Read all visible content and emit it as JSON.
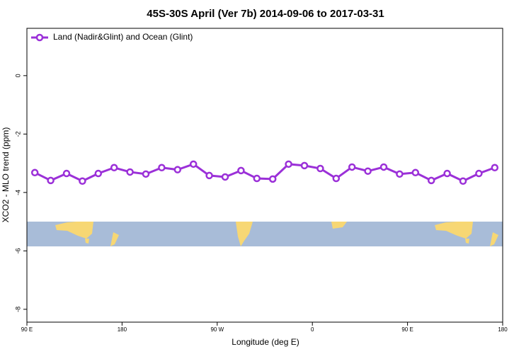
{
  "chart_data": {
    "type": "line",
    "title": "45S-30S April (Ver 7b)   2014-09-06 to 2017-03-31",
    "xlabel": "Longitude (deg E)",
    "ylabel": "XCO2 - MLO trend (ppm)",
    "x": [
      97.5,
      112.5,
      127.5,
      142.5,
      157.5,
      172.5,
      187.5,
      202.5,
      217.5,
      232.5,
      247.5,
      262.5,
      277.5,
      292.5,
      307.5,
      322.5,
      337.5,
      352.5,
      367.5,
      382.5,
      397.5,
      412.5,
      427.5,
      442.5,
      457.5,
      472.5,
      487.5,
      502.5,
      517.5,
      532.5
    ],
    "series": [
      {
        "name": "Land (Nadir&Glint) and Ocean (Glint)",
        "color": "#9b30d8",
        "values": [
          -3.32,
          -3.59,
          -3.35,
          -3.61,
          -3.35,
          -3.15,
          -3.3,
          -3.37,
          -3.15,
          -3.22,
          -3.03,
          -3.42,
          -3.47,
          -3.25,
          -3.52,
          -3.54,
          -3.03,
          -3.08,
          -3.18,
          -3.52,
          -3.13,
          -3.27,
          -3.13,
          -3.37,
          -3.32,
          -3.59,
          -3.35,
          -3.61,
          -3.35,
          -3.15
        ]
      }
    ],
    "xlim": [
      90,
      540
    ],
    "xticks": [
      {
        "value": 90,
        "label": "90 E"
      },
      180,
      {
        "value": 270,
        "label": "90 W"
      },
      {
        "value": 360,
        "label": "0"
      },
      {
        "value": 450,
        "label": "90 E"
      },
      {
        "value": 540,
        "label": "180"
      }
    ],
    "ylim": [
      -8.44,
      1.62
    ],
    "yticks": [
      0,
      -2,
      -4,
      -6,
      -8
    ],
    "legend": "top-left"
  }
}
